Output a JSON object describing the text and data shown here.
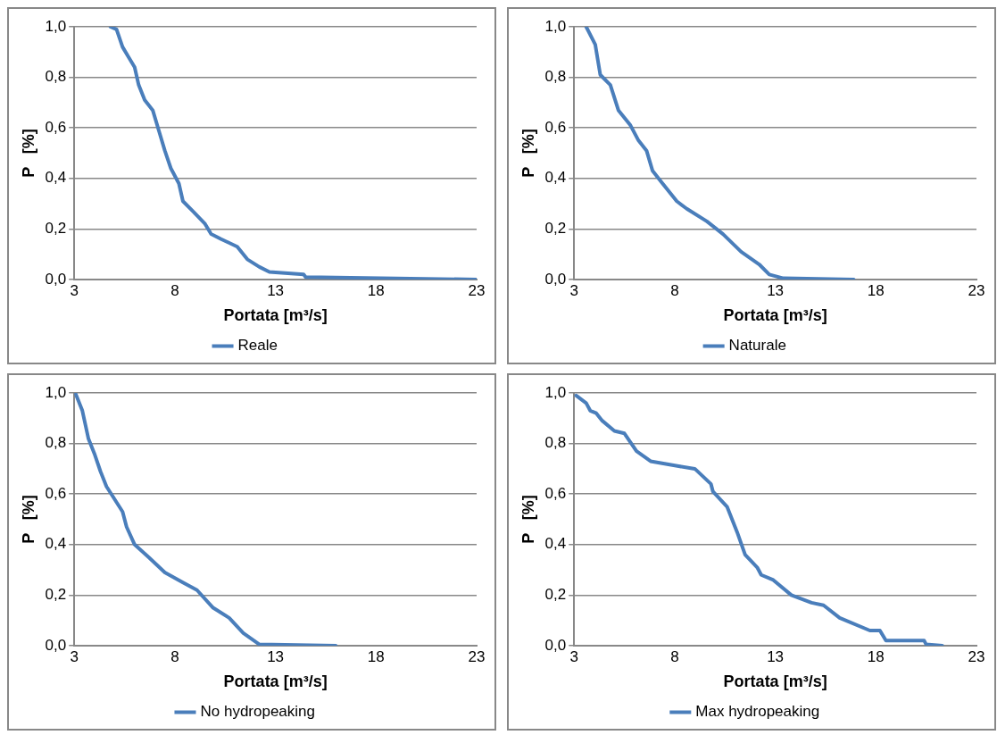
{
  "chart_data": [
    {
      "type": "line",
      "xlabel": "Portata [m³/s]",
      "ylabel": "P   [%]",
      "xlim": [
        3,
        23
      ],
      "xticks": [
        3,
        8,
        13,
        18,
        23
      ],
      "ylim": [
        0,
        1
      ],
      "yticks": [
        {
          "value": 0,
          "label": "0,0"
        },
        {
          "value": 0.2,
          "label": "0,2"
        },
        {
          "value": 0.4,
          "label": "0,4"
        },
        {
          "value": 0.6,
          "label": "0,6"
        },
        {
          "value": 0.8,
          "label": "0,8"
        },
        {
          "value": 1,
          "label": "1,0"
        }
      ],
      "grid": "y",
      "legend": "bottom",
      "marker": "none",
      "line_style": "solid",
      "series": [
        {
          "name": "Reale",
          "color": "#4a7ebb",
          "x": [
            4.8,
            5.1,
            5.4,
            5.7,
            6.0,
            6.2,
            6.5,
            6.9,
            7.2,
            7.5,
            7.8,
            8.2,
            8.4,
            8.9,
            9.5,
            9.8,
            10.3,
            11.1,
            11.6,
            12.2,
            12.7,
            14.4,
            14.5,
            23
          ],
          "values": [
            1.0,
            0.99,
            0.92,
            0.88,
            0.84,
            0.77,
            0.71,
            0.67,
            0.59,
            0.51,
            0.44,
            0.38,
            0.31,
            0.27,
            0.22,
            0.18,
            0.16,
            0.13,
            0.08,
            0.05,
            0.03,
            0.02,
            0.01,
            0.0
          ]
        }
      ]
    },
    {
      "type": "line",
      "xlabel": "Portata [m³/s]",
      "ylabel": "P   [%]",
      "xlim": [
        3,
        23
      ],
      "xticks": [
        3,
        8,
        13,
        18,
        23
      ],
      "ylim": [
        0,
        1
      ],
      "yticks": [
        {
          "value": 0,
          "label": "0,0"
        },
        {
          "value": 0.2,
          "label": "0,2"
        },
        {
          "value": 0.4,
          "label": "0,4"
        },
        {
          "value": 0.6,
          "label": "0,6"
        },
        {
          "value": 0.8,
          "label": "0,8"
        },
        {
          "value": 1,
          "label": "1,0"
        }
      ],
      "grid": "y",
      "legend": "bottom",
      "marker": "none",
      "line_style": "solid",
      "series": [
        {
          "name": "Naturale",
          "color": "#4a7ebb",
          "x": [
            3.6,
            4.05,
            4.3,
            4.8,
            5.2,
            5.8,
            6.2,
            6.6,
            6.9,
            7.3,
            8.1,
            8.6,
            9.6,
            10.4,
            11.3,
            12.2,
            12.7,
            13.4,
            16.9
          ],
          "values": [
            1.0,
            0.93,
            0.81,
            0.77,
            0.67,
            0.61,
            0.55,
            0.51,
            0.43,
            0.39,
            0.31,
            0.28,
            0.23,
            0.18,
            0.11,
            0.06,
            0.02,
            0.005,
            0.0
          ]
        }
      ]
    },
    {
      "type": "line",
      "xlabel": "Portata [m³/s]",
      "ylabel": "P   [%]",
      "xlim": [
        3,
        23
      ],
      "xticks": [
        3,
        8,
        13,
        18,
        23
      ],
      "ylim": [
        0,
        1
      ],
      "yticks": [
        {
          "value": 0,
          "label": "0,0"
        },
        {
          "value": 0.2,
          "label": "0,2"
        },
        {
          "value": 0.4,
          "label": "0,4"
        },
        {
          "value": 0.6,
          "label": "0,6"
        },
        {
          "value": 0.8,
          "label": "0,8"
        },
        {
          "value": 1,
          "label": "1,0"
        }
      ],
      "grid": "y",
      "legend": "bottom",
      "marker": "none",
      "line_style": "solid",
      "series": [
        {
          "name": "No hydropeaking",
          "color": "#4a7ebb",
          "x": [
            3.05,
            3.4,
            3.7,
            4.0,
            4.3,
            4.6,
            5.4,
            5.6,
            6.0,
            6.7,
            7.5,
            8.4,
            9.1,
            9.9,
            10.7,
            11.4,
            12.2,
            16.0
          ],
          "values": [
            1.0,
            0.93,
            0.82,
            0.76,
            0.69,
            0.63,
            0.53,
            0.47,
            0.4,
            0.35,
            0.29,
            0.25,
            0.22,
            0.15,
            0.11,
            0.05,
            0.005,
            0.0
          ]
        }
      ]
    },
    {
      "type": "line",
      "xlabel": "Portata [m³/s]",
      "ylabel": "P   [%]",
      "xlim": [
        3,
        23
      ],
      "xticks": [
        3,
        8,
        13,
        18,
        23
      ],
      "ylim": [
        0,
        1
      ],
      "yticks": [
        {
          "value": 0,
          "label": "0,0"
        },
        {
          "value": 0.2,
          "label": "0,2"
        },
        {
          "value": 0.4,
          "label": "0,4"
        },
        {
          "value": 0.6,
          "label": "0,6"
        },
        {
          "value": 0.8,
          "label": "0,8"
        },
        {
          "value": 1,
          "label": "1,0"
        }
      ],
      "grid": "y",
      "legend": "bottom",
      "marker": "none",
      "line_style": "solid",
      "series": [
        {
          "name": "Max hydropeaking",
          "color": "#4a7ebb",
          "x": [
            3.1,
            3.6,
            3.8,
            4.1,
            4.4,
            5.0,
            5.5,
            6.1,
            6.8,
            7.5,
            8.2,
            9.0,
            9.8,
            9.9,
            10.6,
            11.1,
            11.5,
            12.1,
            12.3,
            12.9,
            13.8,
            14.8,
            15.4,
            16.2,
            17.7,
            18.2,
            18.5,
            20.4,
            20.5,
            21.3
          ],
          "values": [
            0.99,
            0.96,
            0.93,
            0.92,
            0.89,
            0.85,
            0.84,
            0.77,
            0.73,
            0.72,
            0.71,
            0.7,
            0.64,
            0.61,
            0.55,
            0.45,
            0.36,
            0.31,
            0.28,
            0.26,
            0.2,
            0.17,
            0.16,
            0.11,
            0.06,
            0.06,
            0.02,
            0.02,
            0.005,
            0.0
          ]
        }
      ]
    }
  ]
}
